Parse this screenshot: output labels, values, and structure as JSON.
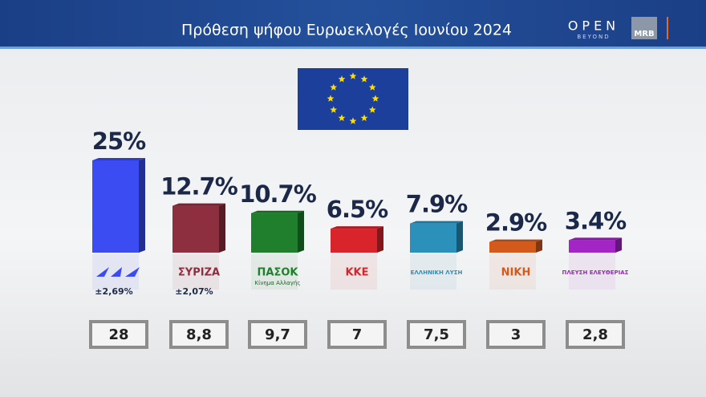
{
  "header": {
    "brand": "OPEN",
    "brand_sub": "BEYOND",
    "pollster": "MRB"
  },
  "chart_data": {
    "type": "bar",
    "title": "Πρόθεση ψήφου Ευρωεκλογές Ιουνίου 2024",
    "categories": [
      null,
      "ΣΥΡΙΖΑ",
      "ΠΑΣΟΚ",
      "ΚΚΕ",
      "ΕΛΛΗΝΙΚΗ ΛΥΣΗ",
      "ΝΙΚΗ",
      "ΠΛΕΥΣΗ ΕΛΕΥΘΕΡΙΑΣ"
    ],
    "category_sublabels": [
      null,
      null,
      "Κίνημα Αλλαγής",
      null,
      null,
      null,
      null
    ],
    "values": [
      25,
      12.7,
      10.7,
      6.5,
      7.9,
      2.9,
      3.4
    ],
    "value_labels": [
      "25%",
      "12.7%",
      "10.7%",
      "6.5%",
      "7.9%",
      "2.9%",
      "3.4%"
    ],
    "colors": [
      "#3a4cf2",
      "#8e2f40",
      "#1f7f2d",
      "#d9242c",
      "#2b90ba",
      "#d45a1c",
      "#a325c6"
    ],
    "error_labels": [
      "±2,69%",
      "±2,07%"
    ],
    "box_values": [
      28,
      8.8,
      9.7,
      7,
      7.5,
      3,
      2.8
    ],
    "box_labels": [
      "28",
      "8,8",
      "9,7",
      "7",
      "7,5",
      "3",
      "2,8"
    ]
  }
}
